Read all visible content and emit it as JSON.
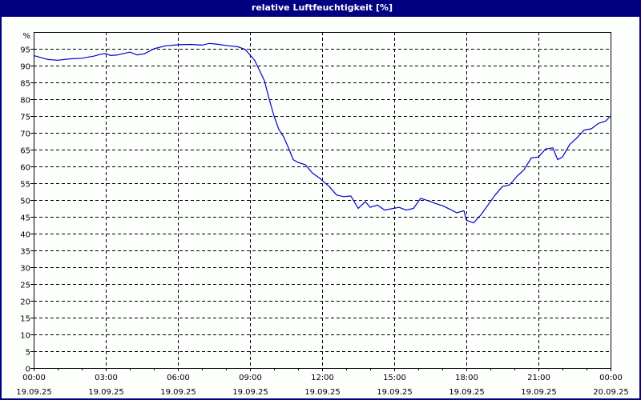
{
  "window": {
    "title": "relative Luftfeuchtigkeit [%]"
  },
  "colors": {
    "titlebar": "#000080",
    "line": "#0000c8",
    "grid": "#000000",
    "background": "#fdfffd"
  },
  "chart_data": {
    "type": "line",
    "title": "relative Luftfeuchtigkeit [%]",
    "xlabel": "",
    "ylabel": "%",
    "ylim": [
      0,
      100
    ],
    "xlim_hours": [
      0,
      24
    ],
    "grid": true,
    "grid_style": "dashed",
    "legend": "none",
    "y_ticks": [
      0,
      5,
      10,
      15,
      20,
      25,
      30,
      35,
      40,
      45,
      50,
      55,
      60,
      65,
      70,
      75,
      80,
      85,
      90,
      95
    ],
    "y_unit_label": "%",
    "x_ticks": [
      {
        "time": "00:00",
        "date": "19.09.25",
        "hour": 0
      },
      {
        "time": "03:00",
        "date": "19.09.25",
        "hour": 3
      },
      {
        "time": "06:00",
        "date": "19.09.25",
        "hour": 6
      },
      {
        "time": "09:00",
        "date": "19.09.25",
        "hour": 9
      },
      {
        "time": "12:00",
        "date": "19.09.25",
        "hour": 12
      },
      {
        "time": "15:00",
        "date": "19.09.25",
        "hour": 15
      },
      {
        "time": "18:00",
        "date": "19.09.25",
        "hour": 18
      },
      {
        "time": "21:00",
        "date": "19.09.25",
        "hour": 21
      },
      {
        "time": "00:00",
        "date": "20.09.25",
        "hour": 24
      }
    ],
    "series": [
      {
        "name": "relative Luftfeuchtigkeit",
        "x_hours": [
          0,
          0.3,
          0.6,
          1.0,
          1.5,
          2.0,
          2.5,
          2.8,
          3.0,
          3.2,
          3.5,
          4.0,
          4.3,
          4.6,
          5.0,
          5.5,
          6.0,
          6.5,
          7.0,
          7.3,
          7.6,
          8.0,
          8.5,
          8.8,
          9.0,
          9.2,
          9.4,
          9.6,
          9.8,
          10.0,
          10.2,
          10.4,
          10.6,
          10.8,
          11.0,
          11.3,
          11.6,
          11.9,
          12.1,
          12.3,
          12.6,
          12.9,
          13.2,
          13.5,
          13.8,
          14.0,
          14.3,
          14.6,
          14.9,
          15.2,
          15.5,
          15.8,
          16.1,
          16.4,
          16.7,
          17.0,
          17.3,
          17.6,
          17.9,
          18.0,
          18.3,
          18.6,
          18.9,
          19.2,
          19.5,
          19.8,
          20.1,
          20.4,
          20.7,
          21.0,
          21.3,
          21.6,
          21.8,
          22.0,
          22.3,
          22.6,
          22.9,
          23.2,
          23.5,
          23.8,
          24.0
        ],
        "values": [
          93.0,
          92.4,
          91.8,
          91.6,
          92.0,
          92.2,
          92.8,
          93.4,
          93.6,
          93.0,
          93.2,
          94.0,
          93.2,
          93.5,
          95.0,
          95.9,
          96.2,
          96.3,
          96.1,
          96.6,
          96.4,
          96.0,
          95.6,
          94.8,
          93.2,
          91.5,
          88.5,
          85.5,
          80.0,
          75.0,
          71.0,
          68.8,
          65.5,
          62.0,
          61.2,
          60.5,
          58.0,
          56.5,
          55.2,
          54.0,
          51.5,
          51.0,
          51.2,
          47.5,
          49.5,
          47.8,
          48.5,
          47.0,
          47.4,
          47.8,
          47.0,
          47.5,
          50.5,
          49.8,
          49.0,
          48.3,
          47.3,
          46.2,
          46.8,
          44.0,
          43.2,
          45.5,
          48.5,
          51.5,
          54.0,
          54.5,
          57.0,
          59.0,
          62.5,
          62.8,
          65.2,
          65.5,
          62.0,
          62.8,
          66.5,
          68.5,
          70.8,
          71.2,
          72.8,
          73.5,
          75.0
        ]
      }
    ]
  }
}
